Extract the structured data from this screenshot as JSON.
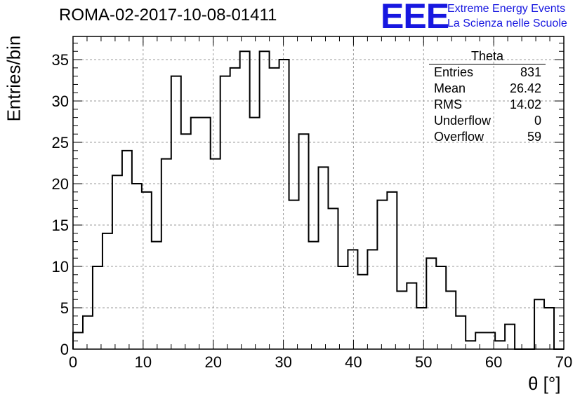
{
  "header": {
    "run_title": "ROMA-02-2017-10-08-01411",
    "logo_text": "EEE",
    "logo_line1": "Extreme Energy Events",
    "logo_line2": "La Scienza nelle Scuole"
  },
  "stats": {
    "title": "Theta",
    "rows": [
      {
        "label": "Entries",
        "value": "831"
      },
      {
        "label": "Mean",
        "value": "26.42"
      },
      {
        "label": "RMS",
        "value": "14.02"
      },
      {
        "label": "Underflow",
        "value": "0"
      },
      {
        "label": "Overflow",
        "value": "59"
      }
    ]
  },
  "colors": {
    "logo": "#1717e0",
    "line": "#000000",
    "grid": "#9a9a9a"
  },
  "chart_data": {
    "type": "histogram",
    "xlabel": "θ [°]",
    "ylabel": "Entries/bin",
    "xlim": [
      0,
      70
    ],
    "ylim": [
      0,
      37.8
    ],
    "bin_width": 1.4,
    "x_ticks": [
      0,
      10,
      20,
      30,
      40,
      50,
      60,
      70
    ],
    "y_ticks": [
      0,
      5,
      10,
      15,
      20,
      25,
      30,
      35
    ],
    "grid": true,
    "legend": "stats box top-right",
    "values": [
      2,
      4,
      10,
      14,
      21,
      24,
      20,
      19,
      13,
      23,
      33,
      26,
      28,
      28,
      23,
      33,
      34,
      36,
      28,
      36,
      34,
      35,
      18,
      26,
      13,
      22,
      17,
      10,
      12,
      9,
      12,
      18,
      19,
      7,
      8,
      5,
      11,
      10,
      7,
      4,
      1,
      2,
      2,
      1,
      3,
      0,
      0,
      6,
      5,
      0
    ]
  }
}
